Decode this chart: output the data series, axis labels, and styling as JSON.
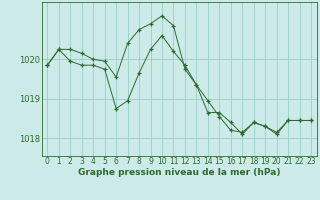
{
  "title": "Graphe pression niveau de la mer (hPa)",
  "bg_color": "#cceae8",
  "grid_color": "#99ccc8",
  "line_color": "#2d6a2d",
  "xlim": [
    -0.5,
    23.5
  ],
  "ylim": [
    1017.55,
    1021.45
  ],
  "yticks": [
    1018,
    1019,
    1020
  ],
  "xticks": [
    0,
    1,
    2,
    3,
    4,
    5,
    6,
    7,
    8,
    9,
    10,
    11,
    12,
    13,
    14,
    15,
    16,
    17,
    18,
    19,
    20,
    21,
    22,
    23
  ],
  "series1_x": [
    0,
    1,
    2,
    3,
    4,
    5,
    6,
    7,
    8,
    9,
    10,
    11,
    12,
    13,
    14,
    15,
    16,
    17,
    18,
    19,
    20,
    21,
    22,
    23
  ],
  "series1_y": [
    1019.85,
    1020.25,
    1020.25,
    1020.15,
    1020.0,
    1019.95,
    1019.55,
    1020.4,
    1020.75,
    1020.9,
    1021.1,
    1020.85,
    1019.75,
    1019.35,
    1018.95,
    1018.55,
    1018.2,
    1018.15,
    1018.4,
    1018.3,
    1018.15,
    1018.45,
    1018.45,
    1018.45
  ],
  "series2_x": [
    0,
    1,
    2,
    3,
    4,
    5,
    6,
    7,
    8,
    9,
    10,
    11,
    12,
    13,
    14,
    15,
    16,
    17,
    18,
    19,
    20,
    21,
    22,
    23
  ],
  "series2_y": [
    1019.85,
    1020.25,
    1019.95,
    1019.85,
    1019.85,
    1019.75,
    1018.75,
    1018.95,
    1019.65,
    1020.25,
    1020.6,
    1020.2,
    1019.85,
    1019.35,
    1018.65,
    1018.65,
    1018.4,
    1018.1,
    1018.4,
    1018.3,
    1018.1,
    1018.45,
    1018.45,
    1018.45
  ],
  "tick_fontsize": 5.5,
  "ylabel_fontsize": 6.0,
  "title_fontsize": 6.5,
  "linewidth": 0.7,
  "markersize": 3.5
}
